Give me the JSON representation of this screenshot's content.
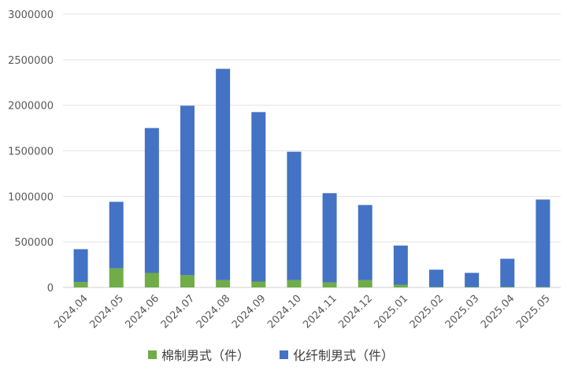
{
  "chart_data": {
    "type": "bar",
    "stacked": true,
    "categories": [
      "2024.04",
      "2024.05",
      "2024.06",
      "2024.07",
      "2024.08",
      "2024.09",
      "2024.10",
      "2024.11",
      "2024.12",
      "2025.01",
      "2025.02",
      "2025.03",
      "2025.04",
      "2025.05"
    ],
    "series": [
      {
        "name": "棉制男式（件）",
        "color": "#70AD47",
        "values": [
          60000,
          210000,
          160000,
          135000,
          80000,
          65000,
          80000,
          55000,
          80000,
          30000,
          5000,
          5000,
          5000,
          5000
        ]
      },
      {
        "name": "化纤制男式（件）",
        "color": "#4472C4",
        "values": [
          360000,
          730000,
          1590000,
          1860000,
          2320000,
          1860000,
          1410000,
          980000,
          825000,
          430000,
          190000,
          155000,
          310000,
          960000
        ]
      }
    ],
    "ylim": [
      0,
      3000000
    ],
    "yticks": [
      0,
      500000,
      1000000,
      1500000,
      2000000,
      2500000,
      3000000
    ],
    "ytick_labels": [
      "0",
      "500000",
      "1000000",
      "1500000",
      "2000000",
      "2500000",
      "3000000"
    ],
    "grid": true,
    "legend_position": "bottom",
    "title": "",
    "xlabel": "",
    "ylabel": ""
  }
}
